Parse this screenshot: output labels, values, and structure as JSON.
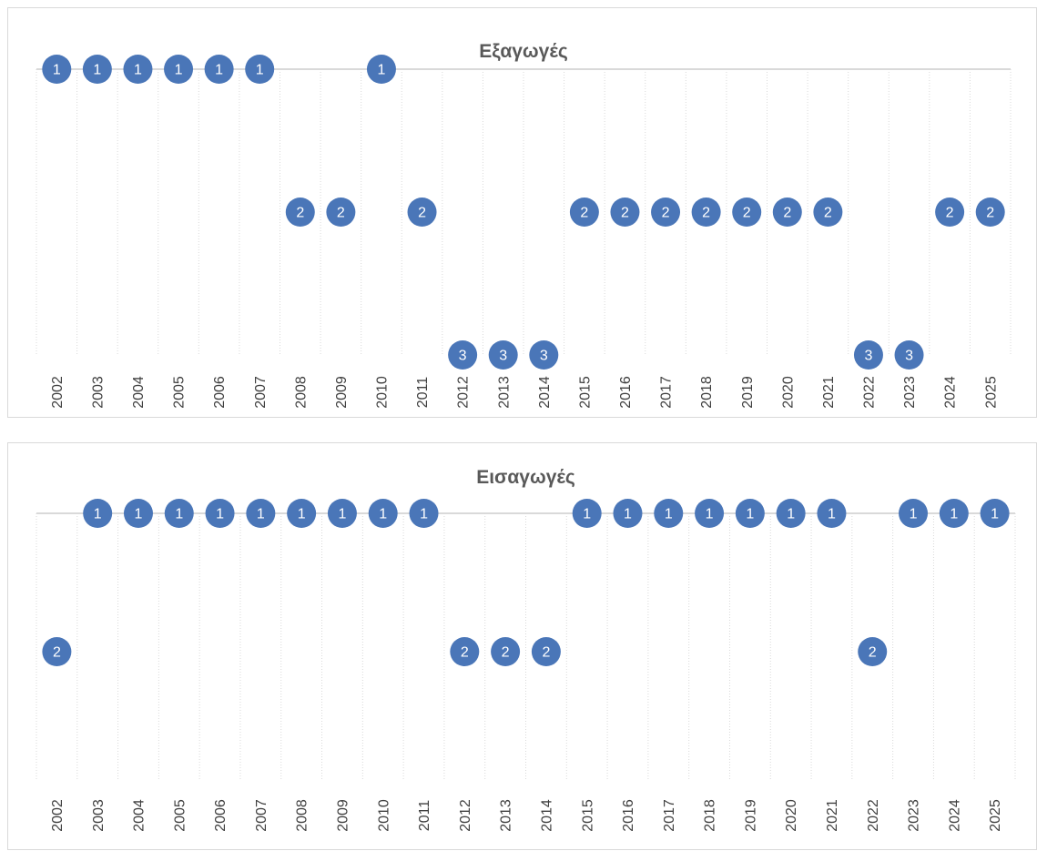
{
  "chart_data": [
    {
      "type": "scatter",
      "title": "Εξαγωγές",
      "categories": [
        "2002",
        "2003",
        "2004",
        "2005",
        "2006",
        "2007",
        "2008",
        "2009",
        "2010",
        "2011",
        "2012",
        "2013",
        "2014",
        "2015",
        "2016",
        "2017",
        "2018",
        "2019",
        "2020",
        "2021",
        "2022",
        "2023",
        "2024",
        "2025"
      ],
      "values": [
        1,
        1,
        1,
        1,
        1,
        1,
        2,
        2,
        1,
        2,
        3,
        3,
        3,
        2,
        2,
        2,
        2,
        2,
        2,
        2,
        3,
        3,
        2,
        2
      ],
      "y_axis": "reversed",
      "ylim": [
        1,
        3
      ],
      "grid": "vertical dotted",
      "marker_color": "#4a76b8",
      "data_labels": "inside markers"
    },
    {
      "type": "scatter",
      "title": "Εισαγωγές",
      "categories": [
        "2002",
        "2003",
        "2004",
        "2005",
        "2006",
        "2007",
        "2008",
        "2009",
        "2010",
        "2011",
        "2012",
        "2013",
        "2014",
        "2015",
        "2016",
        "2017",
        "2018",
        "2019",
        "2020",
        "2021",
        "2022",
        "2023",
        "2024",
        "2025"
      ],
      "values": [
        2,
        1,
        1,
        1,
        1,
        1,
        1,
        1,
        1,
        1,
        2,
        2,
        2,
        1,
        1,
        1,
        1,
        1,
        1,
        1,
        2,
        1,
        1,
        1
      ],
      "y_axis": "reversed",
      "ylim": [
        1,
        3
      ],
      "grid": "vertical dotted",
      "marker_color": "#4a76b8",
      "data_labels": "inside markers"
    }
  ]
}
